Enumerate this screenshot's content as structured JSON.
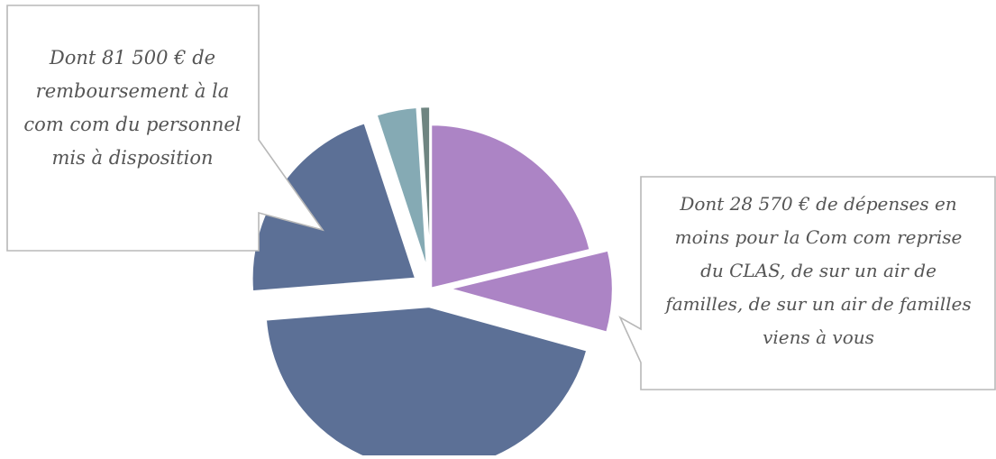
{
  "chart_data": {
    "type": "pie",
    "title": "",
    "slices": [
      {
        "value": 21.0,
        "color": "#AC84C5",
        "exploded": false
      },
      {
        "value": 8.0,
        "color": "#AC84C5",
        "exploded": true
      },
      {
        "value": 44.0,
        "color": "#5C7096",
        "exploded": true
      },
      {
        "value": 21.0,
        "color": "#5C7096",
        "exploded": true
      },
      {
        "value": 4.0,
        "color": "#85AAB4",
        "exploded": true
      },
      {
        "value": 1.0,
        "color": "#6F8581",
        "exploded": true
      }
    ],
    "legend": "none",
    "annotations": [
      {
        "text": "Dont 81 500 € de\nremboursement à la\ncom com du personnel\nmis à disposition"
      },
      {
        "text": "Dont 28 570 € de dépenses en\nmoins pour la Com com reprise\ndu CLAS, de sur un air de\nfamilles, de sur un air de familles\nviens à vous"
      }
    ]
  }
}
